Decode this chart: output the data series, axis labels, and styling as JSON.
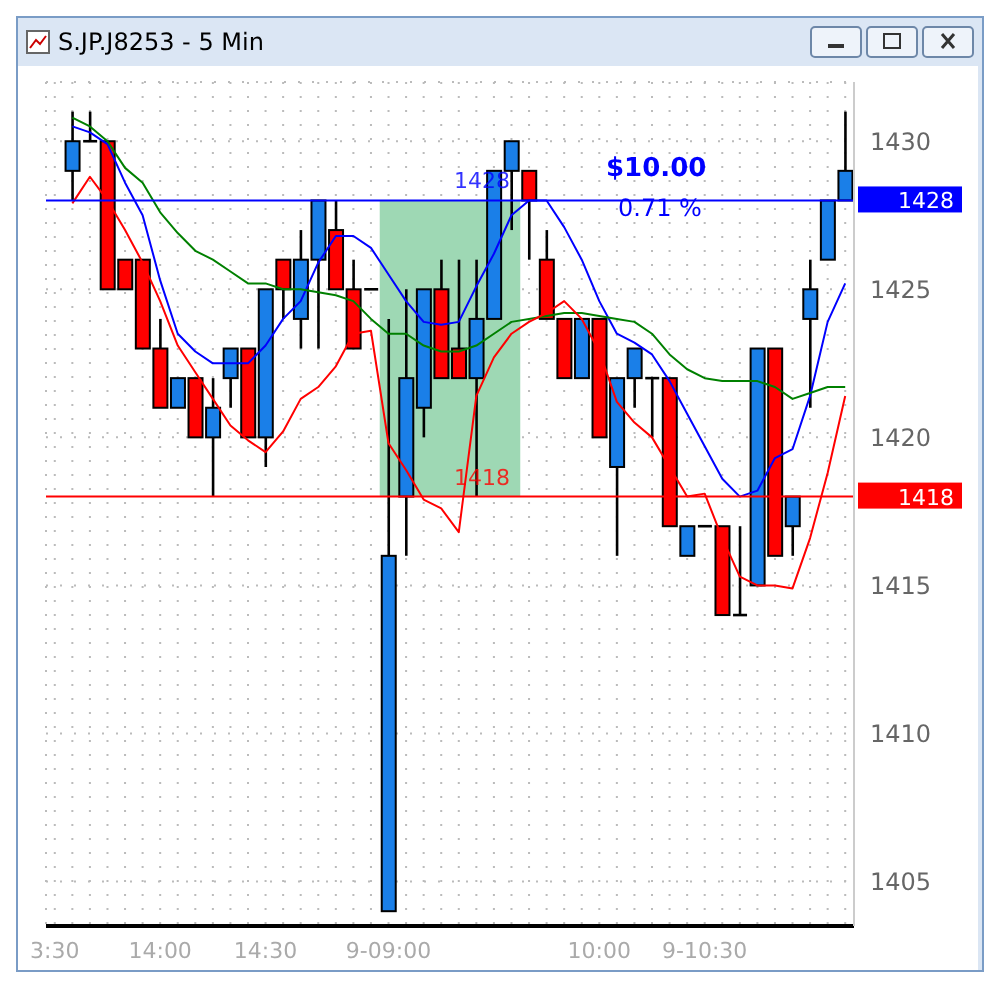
{
  "chart_data": {
    "type": "candlestick",
    "title": "S.JP.J8253 - 5 Min",
    "categories": [
      "3:30",
      null,
      null,
      null,
      null,
      null,
      "14:00",
      null,
      null,
      null,
      null,
      null,
      "14:30",
      null,
      null,
      null,
      null,
      null,
      null,
      "9-09:00",
      null,
      null,
      null,
      null,
      null,
      null,
      null,
      null,
      null,
      null,
      null,
      "10:00",
      null,
      null,
      null,
      null,
      null,
      "9-10:30",
      null,
      null,
      null,
      null,
      null,
      null,
      null,
      null
    ],
    "ohlc": [
      null,
      [
        1429,
        1431,
        1428,
        1430
      ],
      [
        1430,
        1431,
        1430,
        1430
      ],
      [
        1430,
        1430,
        1425,
        1425
      ],
      [
        1426,
        1426,
        1425,
        1425
      ],
      [
        1426,
        1426,
        1423,
        1423
      ],
      [
        1423,
        1424,
        1421,
        1421
      ],
      [
        1421,
        1422,
        1421,
        1422
      ],
      [
        1422,
        1422,
        1420,
        1420
      ],
      [
        1420,
        1422,
        1418,
        1421
      ],
      [
        1422,
        1423,
        1421,
        1423
      ],
      [
        1423,
        1423,
        1420,
        1420
      ],
      [
        1420,
        1425,
        1419,
        1425
      ],
      [
        1426,
        1426,
        1424,
        1425
      ],
      [
        1424,
        1427,
        1423,
        1426
      ],
      [
        1426,
        1428,
        1423,
        1428
      ],
      [
        1427,
        1428,
        1425,
        1425
      ],
      [
        1425,
        1426,
        1423,
        1423
      ],
      [
        1425,
        1425,
        1425,
        1425
      ],
      [
        1404,
        1424,
        1404,
        1416
      ],
      [
        1418,
        1425,
        1416,
        1422
      ],
      [
        1421,
        1425,
        1420,
        1425
      ],
      [
        1425,
        1426,
        1422,
        1422
      ],
      [
        1423,
        1426,
        1422,
        1422
      ],
      [
        1422,
        1426,
        1418,
        1424
      ],
      [
        1424,
        1429,
        1424,
        1429
      ],
      [
        1429,
        1430,
        1427,
        1430
      ],
      [
        1429,
        1429,
        1426,
        1428
      ],
      [
        1426,
        1427,
        1424,
        1424
      ],
      [
        1424,
        1424,
        1422,
        1422
      ],
      [
        1422,
        1424,
        1422,
        1424
      ],
      [
        1424,
        1424,
        1420,
        1420
      ],
      [
        1419,
        1422,
        1416,
        1422
      ],
      [
        1422,
        1423,
        1421,
        1423
      ],
      [
        1422,
        1422,
        1420,
        1422
      ],
      [
        1422,
        1422,
        1417,
        1417
      ],
      [
        1416,
        1417,
        1416,
        1417
      ],
      [
        1417,
        1417,
        1417,
        1417
      ],
      [
        1417,
        1417,
        1414,
        1414
      ],
      [
        1414,
        1417,
        1414,
        1414
      ],
      [
        1415,
        1423,
        1415,
        1423
      ],
      [
        1423,
        1423,
        1416,
        1416
      ],
      [
        1417,
        1418,
        1416,
        1418
      ],
      [
        1424,
        1426,
        1421,
        1425
      ],
      [
        1426,
        1428,
        1426,
        1428
      ],
      [
        1428,
        1431,
        1428,
        1429
      ]
    ],
    "colors": [
      null,
      "#1a7fe8",
      "#000000",
      "#ff0000",
      "#ff0000",
      "#ff0000",
      "#ff0000",
      "#1a7fe8",
      "#ff0000",
      "#1a7fe8",
      "#1a7fe8",
      "#ff0000",
      "#1a7fe8",
      "#ff0000",
      "#1a7fe8",
      "#1a7fe8",
      "#ff0000",
      "#ff0000",
      "#000000",
      "#1a7fe8",
      "#1a7fe8",
      "#1a7fe8",
      "#ff0000",
      "#ff0000",
      "#1a7fe8",
      "#1a7fe8",
      "#1a7fe8",
      "#ff0000",
      "#ff0000",
      "#ff0000",
      "#1a7fe8",
      "#ff0000",
      "#1a7fe8",
      "#1a7fe8",
      "#000000",
      "#ff0000",
      "#1a7fe8",
      "#000000",
      "#ff0000",
      "#000000",
      "#1a7fe8",
      "#ff0000",
      "#1a7fe8",
      "#1a7fe8",
      "#1a7fe8",
      "#1a7fe8"
    ],
    "series": [
      {
        "type": "line",
        "color": "#0000ff",
        "values": [
          null,
          1430.5,
          1430.3,
          1429.9,
          1428.6,
          1427.5,
          1425.3,
          1423.5,
          1422.9,
          1422.5,
          1422.5,
          1422.5,
          1423.1,
          1424,
          1424.6,
          1425.9,
          1426.8,
          1426.8,
          1426.4,
          1425.5,
          1424.6,
          1423.9,
          1423.8,
          1423.9,
          1425.1,
          1426.2,
          1427.5,
          1428,
          1428,
          1427.1,
          1426,
          1424.6,
          1423.5,
          1423.2,
          1422.8,
          1421.9,
          1420.8,
          1419.7,
          1418.6,
          1418,
          1418.2,
          1419.3,
          1419.6,
          1421.4,
          1423.9,
          1425.2
        ]
      },
      {
        "type": "line",
        "color": "#008000",
        "values": [
          null,
          1430.8,
          1430.5,
          1430,
          1429.1,
          1428.6,
          1427.6,
          1426.9,
          1426.3,
          1426,
          1425.6,
          1425.2,
          1425.2,
          1425,
          1425,
          1424.9,
          1424.8,
          1424.6,
          1424,
          1423.5,
          1423.5,
          1423.1,
          1422.9,
          1422.9,
          1423.1,
          1423.5,
          1423.9,
          1424,
          1424.1,
          1424.2,
          1424.2,
          1424.1,
          1424,
          1423.9,
          1423.5,
          1422.8,
          1422.3,
          1422,
          1421.9,
          1421.9,
          1421.9,
          1421.7,
          1421.3,
          1421.5,
          1421.7,
          1421.7
        ]
      },
      {
        "type": "line",
        "color": "#ff0000",
        "values": [
          null,
          1427.9,
          1428.8,
          1428,
          1427,
          1425.9,
          1424.6,
          1423.1,
          1422.2,
          1421.3,
          1420.4,
          1419.9,
          1419.5,
          1420.2,
          1421.3,
          1421.7,
          1422.4,
          1423.5,
          1423.6,
          1419.8,
          1418.9,
          1417.9,
          1417.6,
          1416.8,
          1421.4,
          1422.7,
          1423.5,
          1423.9,
          1424.2,
          1424.6,
          1424,
          1422.9,
          1421.2,
          1420.5,
          1420,
          1419,
          1418,
          1418.1,
          1416.6,
          1415.3,
          1415,
          1415,
          1414.9,
          1416.6,
          1418.8,
          1421.4
        ]
      }
    ],
    "ylim": [
      1403.5,
      1432
    ],
    "yticks": [
      1405,
      1410,
      1415,
      1420,
      1425,
      1430
    ],
    "grid": true,
    "ref_lines": [
      {
        "axis": "y",
        "value": 1428,
        "label": "1428",
        "color": "#0000ff"
      },
      {
        "axis": "y",
        "value": 1418,
        "label": "1418",
        "color": "#ff0000"
      }
    ],
    "bands": [
      {
        "axis": "y",
        "from": 1418,
        "to": 1428,
        "color": "#9ed8b4"
      }
    ],
    "annotations": [
      "$10.00",
      "0.71 %"
    ]
  }
}
